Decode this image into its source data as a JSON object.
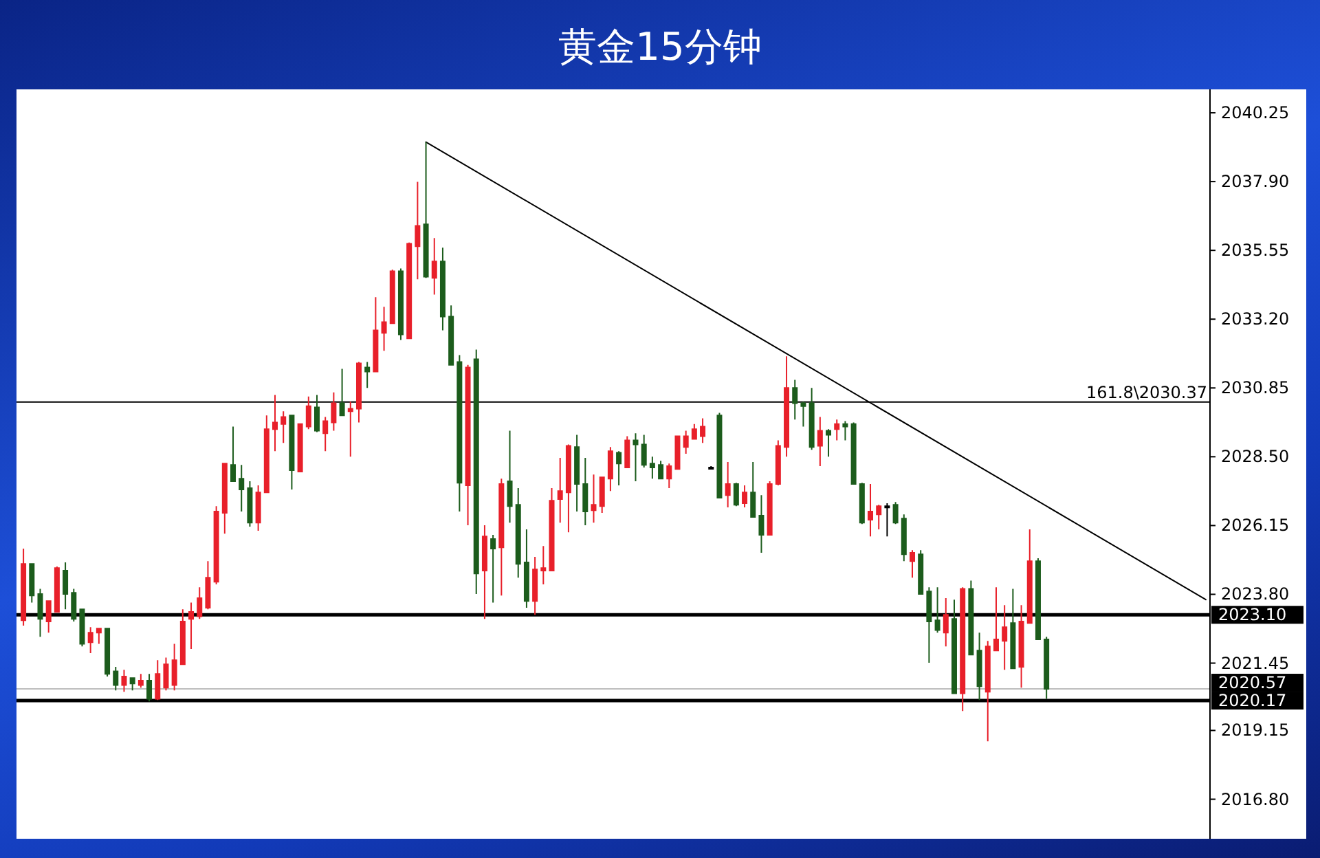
{
  "chart_data": {
    "type": "candlestick",
    "title": "黄金15分钟",
    "categories": [
      null,
      null,
      null,
      null,
      null,
      null,
      null,
      null,
      null,
      null,
      null,
      null,
      null,
      null,
      null,
      null,
      null,
      null,
      null,
      null,
      null,
      null,
      null,
      null,
      null,
      null,
      null,
      null,
      null,
      null,
      null,
      null,
      null,
      null,
      null,
      null,
      null,
      null,
      null,
      null,
      null,
      null,
      null,
      null,
      null,
      null,
      null,
      null,
      null,
      null,
      null,
      null,
      null,
      null,
      null,
      null,
      null,
      null,
      null,
      null,
      null,
      null,
      null,
      null,
      null,
      null,
      null,
      null,
      null,
      null,
      null,
      null,
      null,
      null,
      null,
      null,
      null,
      null,
      null,
      null,
      null,
      null,
      null,
      null,
      null,
      null,
      null,
      null,
      null,
      null,
      null,
      null,
      null,
      null,
      null,
      null,
      null,
      null,
      null,
      null,
      null,
      null,
      null,
      null,
      null,
      null,
      null,
      null,
      null,
      null,
      null,
      null,
      null,
      null,
      null,
      null,
      null,
      null,
      null,
      null,
      null,
      null,
      null,
      null,
      null,
      null,
      null,
      null,
      null,
      null,
      null,
      null,
      null,
      null,
      null,
      null,
      null,
      null,
      null,
      null,
      null,
      null
    ],
    "ohlc": [
      [
        2022.91,
        2025.36,
        2022.73,
        2024.84
      ],
      [
        2024.84,
        2024.84,
        2023.52,
        2023.76
      ],
      [
        2023.81,
        2023.99,
        2022.35,
        2022.96
      ],
      [
        2022.87,
        2023.57,
        2022.49,
        2023.57
      ],
      [
        2023.2,
        2024.75,
        2023.2,
        2024.7
      ],
      [
        2024.61,
        2024.89,
        2023.29,
        2023.81
      ],
      [
        2023.85,
        2023.99,
        2022.87,
        2022.96
      ],
      [
        2023.29,
        2023.29,
        2022.02,
        2022.11
      ],
      [
        2022.16,
        2022.68,
        2021.79,
        2022.49
      ],
      [
        2022.49,
        2022.63,
        2022.11,
        2022.63
      ],
      [
        2022.63,
        2022.63,
        2020.99,
        2021.08
      ],
      [
        2021.17,
        2021.32,
        2020.52,
        2020.7
      ],
      [
        2020.7,
        2021.22,
        2020.47,
        2020.99
      ],
      [
        2020.94,
        2020.94,
        2020.52,
        2020.75
      ],
      [
        2020.7,
        2021.08,
        2020.61,
        2020.85
      ],
      [
        2020.85,
        2021.08,
        2020.14,
        2020.23
      ],
      [
        2020.23,
        2021.55,
        2020.19,
        2021.08
      ],
      [
        2020.61,
        2021.64,
        2020.52,
        2021.41
      ],
      [
        2020.7,
        2022.11,
        2020.52,
        2021.55
      ],
      [
        2021.41,
        2023.29,
        2021.41,
        2022.87
      ],
      [
        2022.96,
        2023.52,
        2021.93,
        2023.2
      ],
      [
        2023.05,
        2024.04,
        2022.96,
        2023.67
      ],
      [
        2023.34,
        2024.93,
        2023.29,
        2024.37
      ],
      [
        2024.23,
        2026.81,
        2024.14,
        2026.63
      ],
      [
        2026.58,
        2028.27,
        2025.87,
        2028.27
      ],
      [
        2028.22,
        2029.53,
        2027.66,
        2027.66
      ],
      [
        2027.75,
        2028.22,
        2026.63,
        2027.38
      ],
      [
        2027.43,
        2027.66,
        2026.11,
        2026.25
      ],
      [
        2026.25,
        2027.52,
        2025.97,
        2027.28
      ],
      [
        2027.28,
        2029.91,
        2027.28,
        2029.44
      ],
      [
        2029.44,
        2030.61,
        2028.69,
        2029.67
      ],
      [
        2029.62,
        2030.05,
        2028.97,
        2029.86
      ],
      [
        2029.91,
        2029.91,
        2027.38,
        2028.04
      ],
      [
        2027.99,
        2029.62,
        2027.99,
        2029.62
      ],
      [
        2029.53,
        2030.56,
        2029.44,
        2030.23
      ],
      [
        2030.19,
        2030.61,
        2029.34,
        2029.39
      ],
      [
        2029.3,
        2029.86,
        2028.69,
        2029.72
      ],
      [
        2029.67,
        2030.7,
        2029.39,
        2030.33
      ],
      [
        2030.33,
        2031.5,
        2029.91,
        2029.91
      ],
      [
        2030.05,
        2030.38,
        2028.5,
        2030.14
      ],
      [
        2030.14,
        2031.74,
        2029.67,
        2031.69
      ],
      [
        2031.55,
        2031.74,
        2030.85,
        2031.41
      ],
      [
        2031.41,
        2033.95,
        2031.41,
        2032.82
      ],
      [
        2032.73,
        2033.62,
        2032.12,
        2033.1
      ],
      [
        2033.06,
        2034.89,
        2033.06,
        2034.84
      ],
      [
        2034.84,
        2034.93,
        2032.49,
        2032.68
      ],
      [
        2032.54,
        2035.82,
        2032.54,
        2035.78
      ],
      [
        2035.69,
        2037.89,
        2034.56,
        2036.39
      ],
      [
        2036.44,
        2039.25,
        2034.61,
        2034.65
      ],
      [
        2034.61,
        2035.97,
        2034.04,
        2035.17
      ],
      [
        2035.17,
        2035.64,
        2032.82,
        2033.29
      ],
      [
        2033.29,
        2033.67,
        2031.64,
        2031.64
      ],
      [
        2031.74,
        2031.97,
        2026.63,
        2027.61
      ],
      [
        2027.52,
        2031.64,
        2026.16,
        2031.55
      ],
      [
        2031.83,
        2032.16,
        2023.81,
        2024.51
      ],
      [
        2024.61,
        2026.16,
        2022.96,
        2025.78
      ],
      [
        2025.69,
        2025.83,
        2023.52,
        2025.36
      ],
      [
        2025.4,
        2027.75,
        2023.76,
        2027.57
      ],
      [
        2027.66,
        2029.39,
        2026.25,
        2026.81
      ],
      [
        2026.86,
        2027.43,
        2024.37,
        2024.84
      ],
      [
        2024.89,
        2026.02,
        2023.34,
        2023.57
      ],
      [
        2023.57,
        2025.08,
        2023.1,
        2024.65
      ],
      [
        2024.61,
        2025.45,
        2024.14,
        2024.7
      ],
      [
        2024.61,
        2027.43,
        2024.61,
        2027.0
      ],
      [
        2027.05,
        2028.46,
        2026.25,
        2027.33
      ],
      [
        2027.28,
        2028.92,
        2025.92,
        2028.87
      ],
      [
        2028.83,
        2029.25,
        2026.63,
        2027.57
      ],
      [
        2027.57,
        2028.46,
        2026.16,
        2026.63
      ],
      [
        2026.67,
        2027.89,
        2026.25,
        2026.86
      ],
      [
        2026.81,
        2027.8,
        2026.58,
        2027.8
      ],
      [
        2027.75,
        2028.83,
        2027.33,
        2028.69
      ],
      [
        2028.64,
        2028.69,
        2027.52,
        2028.27
      ],
      [
        2028.13,
        2029.2,
        2028.13,
        2029.06
      ],
      [
        2029.06,
        2029.3,
        2027.66,
        2028.92
      ],
      [
        2028.92,
        2029.25,
        2028.13,
        2028.22
      ],
      [
        2028.27,
        2028.5,
        2027.75,
        2028.13
      ],
      [
        2028.22,
        2028.36,
        2027.75,
        2027.75
      ],
      [
        2027.75,
        2028.27,
        2027.43,
        2028.18
      ],
      [
        2028.08,
        2029.2,
        2028.08,
        2029.2
      ],
      [
        2028.83,
        2029.39,
        2028.6,
        2029.2
      ],
      [
        2029.11,
        2029.62,
        2029.11,
        2029.44
      ],
      [
        2029.2,
        2029.81,
        2028.97,
        2029.53
      ],
      [
        2028.13,
        2028.18,
        2028.08,
        2028.13
      ],
      [
        2029.91,
        2030.0,
        2027.1,
        2027.1
      ],
      [
        2027.19,
        2028.32,
        2026.77,
        2027.57
      ],
      [
        2027.57,
        2027.61,
        2026.81,
        2026.86
      ],
      [
        2026.91,
        2027.52,
        2026.77,
        2027.28
      ],
      [
        2027.28,
        2028.32,
        2026.44,
        2026.44
      ],
      [
        2026.49,
        2027.19,
        2025.22,
        2025.83
      ],
      [
        2025.83,
        2027.66,
        2025.83,
        2027.57
      ],
      [
        2027.57,
        2029.06,
        2027.52,
        2028.87
      ],
      [
        2028.83,
        2031.93,
        2028.5,
        2030.85
      ],
      [
        2030.85,
        2031.13,
        2029.77,
        2030.33
      ],
      [
        2030.33,
        2030.38,
        2029.53,
        2030.23
      ],
      [
        2030.33,
        2030.85,
        2028.74,
        2028.83
      ],
      [
        2028.87,
        2029.86,
        2028.18,
        2029.39
      ],
      [
        2029.39,
        2029.44,
        2028.5,
        2029.25
      ],
      [
        2029.44,
        2029.77,
        2029.06,
        2029.62
      ],
      [
        2029.62,
        2029.72,
        2029.06,
        2029.53
      ],
      [
        2029.62,
        2029.67,
        2027.57,
        2027.57
      ],
      [
        2027.57,
        2027.61,
        2026.2,
        2026.25
      ],
      [
        2026.35,
        2027.57,
        2025.78,
        2026.63
      ],
      [
        2026.53,
        2026.86,
        2026.02,
        2026.81
      ],
      [
        2026.81,
        2026.91,
        2025.78,
        2026.81
      ],
      [
        2026.86,
        2026.95,
        2026.2,
        2026.25
      ],
      [
        2026.39,
        2026.53,
        2024.93,
        2025.17
      ],
      [
        2024.93,
        2025.31,
        2024.37,
        2025.22
      ],
      [
        2025.17,
        2025.31,
        2023.81,
        2023.81
      ],
      [
        2023.9,
        2024.04,
        2021.46,
        2022.87
      ],
      [
        2022.91,
        2024.04,
        2022.49,
        2022.58
      ],
      [
        2022.49,
        2023.67,
        2022.02,
        2023.1
      ],
      [
        2022.96,
        2023.62,
        2020.42,
        2020.42
      ],
      [
        2020.42,
        2024.04,
        2019.81,
        2023.99
      ],
      [
        2023.99,
        2024.27,
        2021.74,
        2021.74
      ],
      [
        2021.88,
        2022.49,
        2020.19,
        2020.66
      ],
      [
        2020.47,
        2022.21,
        2018.78,
        2022.02
      ],
      [
        2021.88,
        2024.04,
        2021.88,
        2022.26
      ],
      [
        2022.21,
        2023.43,
        2021.22,
        2022.68
      ],
      [
        2022.82,
        2023.99,
        2021.27,
        2021.27
      ],
      [
        2021.32,
        2023.43,
        2020.61,
        2022.87
      ],
      [
        2022.82,
        2026.02,
        2022.82,
        2024.93
      ],
      [
        2024.93,
        2025.03,
        2022.26,
        2022.26
      ],
      [
        2022.26,
        2022.35,
        2020.23,
        2020.57
      ],
      null,
      null,
      null,
      null,
      null,
      null,
      null,
      null,
      null,
      null,
      null,
      null,
      null,
      null,
      null,
      null,
      null,
      null,
      null
    ],
    "colors": [
      "#e8202a",
      "#1c5c1c",
      "#1c5c1c",
      "#e8202a",
      "#e8202a",
      "#1c5c1c",
      "#1c5c1c",
      "#1c5c1c",
      "#e8202a",
      "#e8202a",
      "#1c5c1c",
      "#1c5c1c",
      "#e8202a",
      "#1c5c1c",
      "#e8202a",
      "#1c5c1c",
      "#e8202a",
      "#e8202a",
      "#e8202a",
      "#e8202a",
      "#e8202a",
      "#e8202a",
      "#e8202a",
      "#e8202a",
      "#e8202a",
      "#1c5c1c",
      "#1c5c1c",
      "#1c5c1c",
      "#e8202a",
      "#e8202a",
      "#e8202a",
      "#e8202a",
      "#1c5c1c",
      "#e8202a",
      "#e8202a",
      "#1c5c1c",
      "#e8202a",
      "#e8202a",
      "#1c5c1c",
      "#e8202a",
      "#e8202a",
      "#1c5c1c",
      "#e8202a",
      "#e8202a",
      "#e8202a",
      "#1c5c1c",
      "#e8202a",
      "#e8202a",
      "#1c5c1c",
      "#e8202a",
      "#1c5c1c",
      "#1c5c1c",
      "#1c5c1c",
      "#e8202a",
      "#1c5c1c",
      "#e8202a",
      "#1c5c1c",
      "#e8202a",
      "#1c5c1c",
      "#1c5c1c",
      "#1c5c1c",
      "#e8202a",
      "#e8202a",
      "#e8202a",
      "#e8202a",
      "#e8202a",
      "#1c5c1c",
      "#1c5c1c",
      "#e8202a",
      "#e8202a",
      "#e8202a",
      "#1c5c1c",
      "#e8202a",
      "#1c5c1c",
      "#1c5c1c",
      "#1c5c1c",
      "#1c5c1c",
      "#e8202a",
      "#e8202a",
      "#e8202a",
      "#e8202a",
      "#e8202a",
      "#000000",
      "#1c5c1c",
      "#e8202a",
      "#1c5c1c",
      "#e8202a",
      "#1c5c1c",
      "#1c5c1c",
      "#e8202a",
      "#e8202a",
      "#e8202a",
      "#1c5c1c",
      "#1c5c1c",
      "#1c5c1c",
      "#e8202a",
      "#1c5c1c",
      "#e8202a",
      "#1c5c1c",
      "#1c5c1c",
      "#1c5c1c",
      "#e8202a",
      "#e8202a",
      "#000000",
      "#1c5c1c",
      "#1c5c1c",
      "#e8202a",
      "#1c5c1c",
      "#1c5c1c",
      "#1c5c1c",
      "#e8202a",
      "#1c5c1c",
      "#e8202a",
      "#1c5c1c",
      "#1c5c1c",
      "#e8202a",
      "#e8202a",
      "#e8202a",
      "#1c5c1c",
      "#e8202a",
      "#e8202a",
      "#1c5c1c",
      "#1c5c1c",
      null,
      null,
      null,
      null,
      null,
      null,
      null,
      null,
      null,
      null,
      null,
      null,
      null,
      null,
      null,
      null,
      null,
      null,
      null
    ],
    "series": [
      {
        "type": "line",
        "color": "#000000",
        "values": [
          null,
          null,
          null,
          null,
          null,
          null,
          null,
          null,
          null,
          null,
          null,
          null,
          null,
          null,
          null,
          null,
          null,
          null,
          null,
          null,
          null,
          null,
          null,
          null,
          null,
          null,
          null,
          null,
          null,
          null,
          null,
          null,
          null,
          null,
          null,
          null,
          null,
          null,
          null,
          null,
          null,
          null,
          null,
          null,
          null,
          null,
          null,
          null,
          2039.25,
          null,
          null,
          null,
          null,
          null,
          null,
          null,
          null,
          null,
          null,
          null,
          null,
          null,
          null,
          null,
          null,
          null,
          null,
          null,
          null,
          null,
          null,
          null,
          null,
          null,
          null,
          null,
          null,
          null,
          null,
          null,
          null,
          null,
          null,
          null,
          null,
          null,
          null,
          null,
          null,
          null,
          null,
          null,
          null,
          null,
          null,
          null,
          null,
          null,
          null,
          null,
          null,
          null,
          null,
          null,
          null,
          null,
          null,
          null,
          null,
          null,
          null,
          null,
          null,
          null,
          null,
          null,
          null,
          null,
          null,
          null,
          null,
          null,
          null,
          null,
          null,
          null,
          null,
          null,
          null,
          null,
          null,
          null,
          null,
          null,
          null,
          null,
          null,
          null,
          null,
          null,
          null,
          2023.62
        ]
      }
    ],
    "ylim": [
      2015.45,
      2041.05
    ],
    "yticks": [
      2040.25,
      {
        "value": 2037.9,
        "label": "2037.90"
      },
      2035.55,
      {
        "value": 2033.2,
        "label": "2033.20"
      },
      2030.85,
      {
        "value": 2028.5,
        "label": "2028.50"
      },
      2026.15,
      {
        "value": 2023.8,
        "label": "2023.80"
      },
      2021.45,
      2019.15,
      {
        "value": 2016.8,
        "label": "2016.80"
      }
    ],
    "ref_lines": [
      {
        "axis": "y",
        "value": 2030.37,
        "color": "#000000"
      },
      {
        "axis": "y",
        "value": 2023.1,
        "label": "2023.10",
        "color": "#000000"
      },
      {
        "axis": "y",
        "value": 2020.57,
        "label": "2020.57",
        "color": "#bdbdbd"
      },
      {
        "axis": "y",
        "value": 2020.17,
        "label": "2020.17",
        "color": "#000000"
      }
    ],
    "annotations": [
      {
        "text": "161.8\\2030.37",
        "y": 2030.37
      }
    ],
    "tick_labels": "y"
  }
}
